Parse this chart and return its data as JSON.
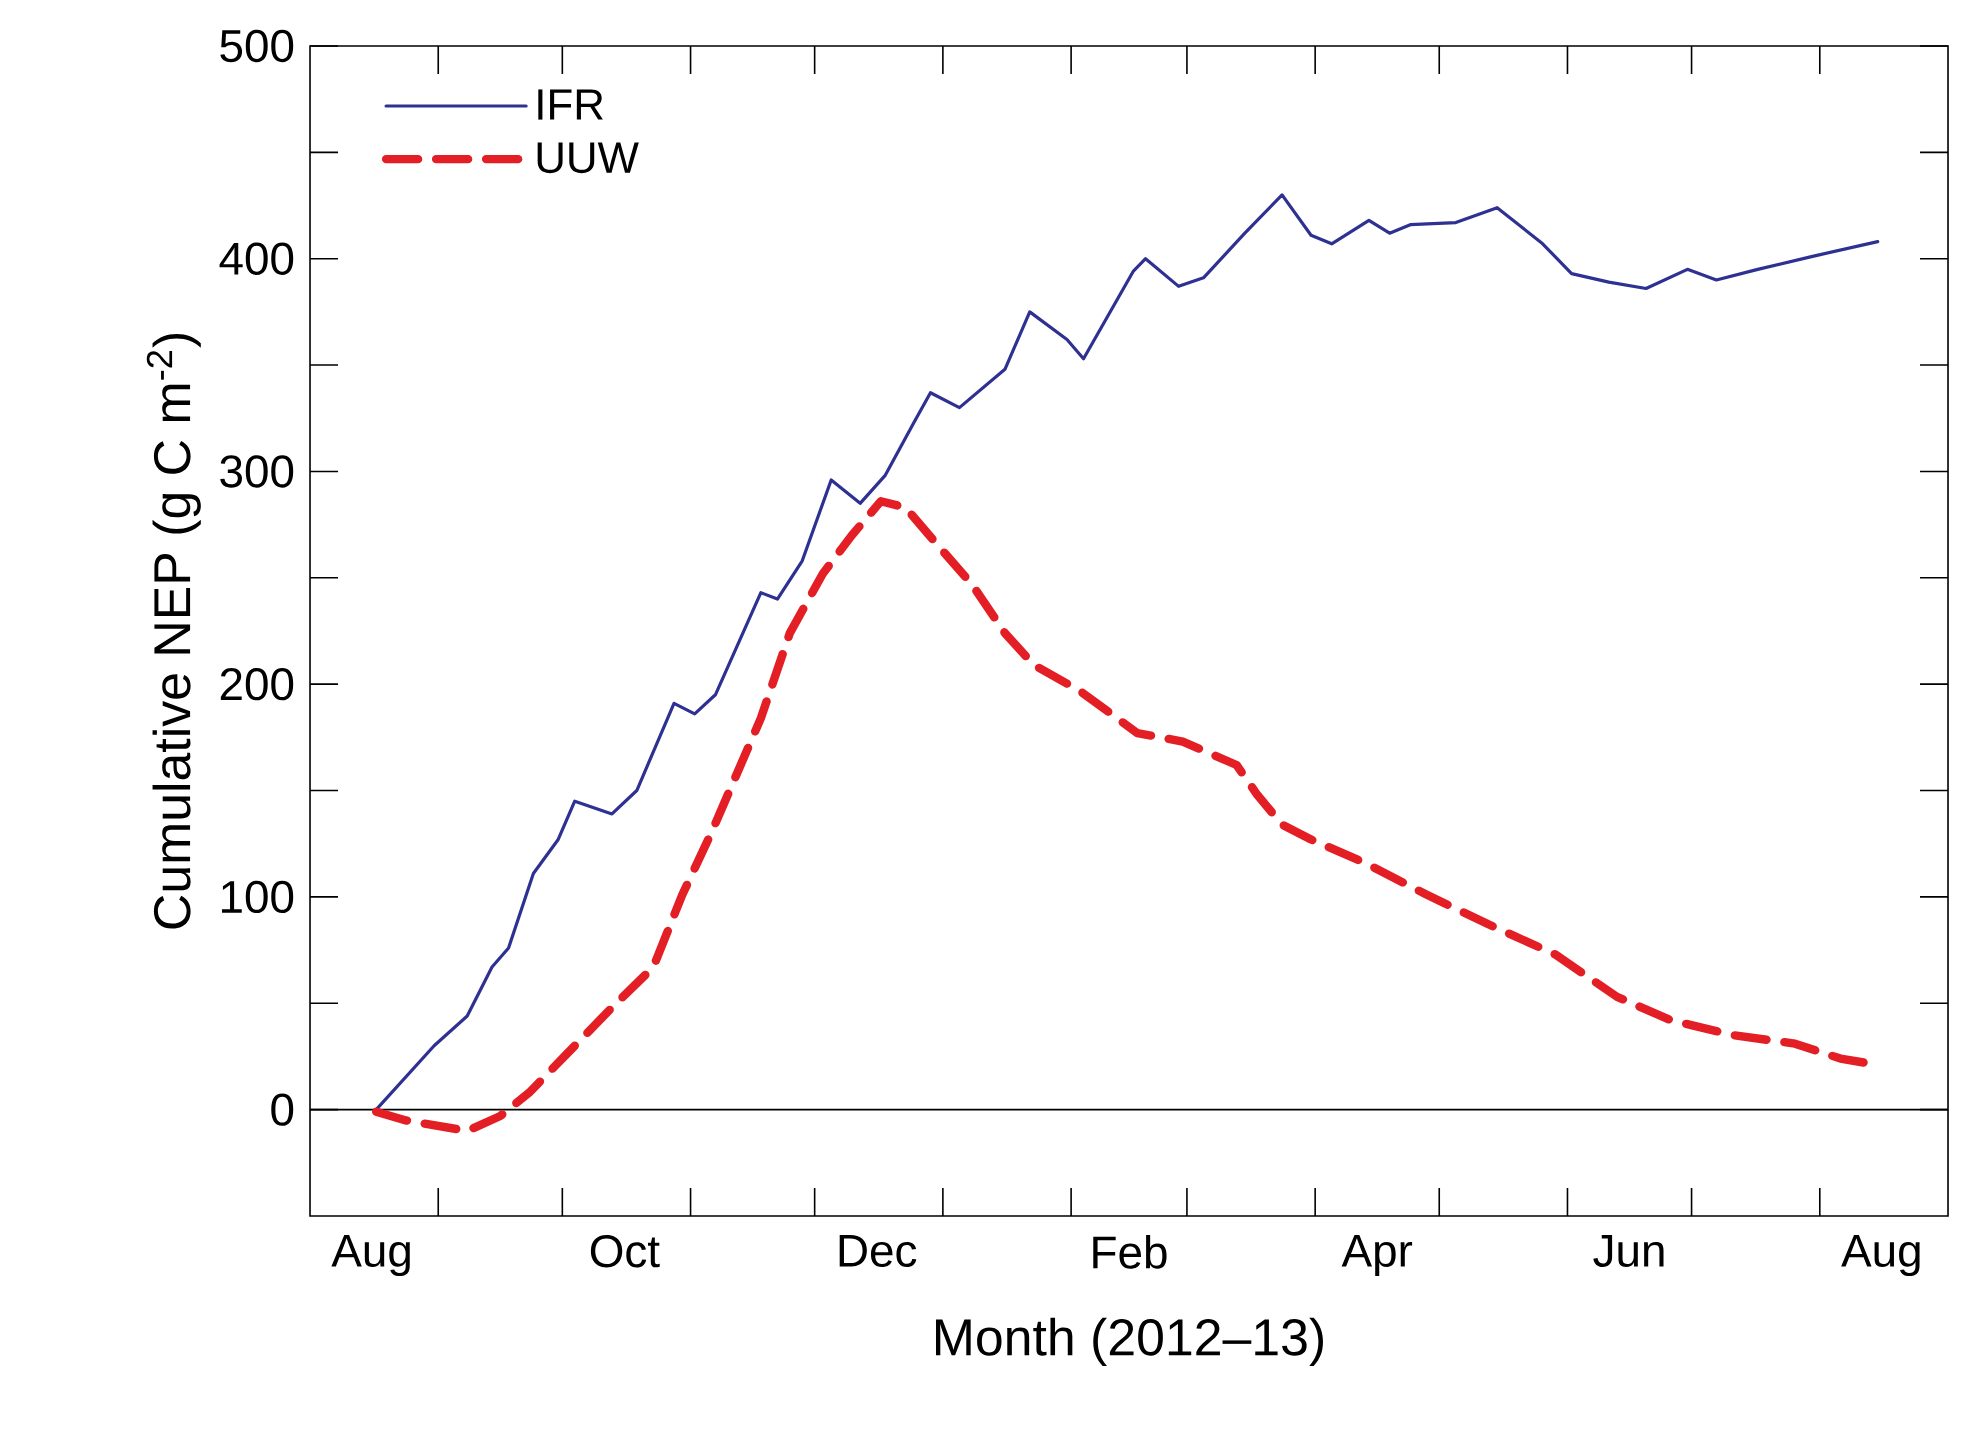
{
  "chart_data": {
    "type": "line",
    "xlabel": "Month (2012–13)",
    "ylabel": "Cumulative NEP (g C m$^{-2}$)",
    "xlim": [
      "2012-08-01",
      "2013-09-01"
    ],
    "xticks": [
      {
        "value": "2012-08-16",
        "label": "Aug"
      },
      {
        "value": "2012-10-16",
        "label": "Oct"
      },
      {
        "value": "2012-12-16",
        "label": "Dec"
      },
      {
        "value": "2013-02-15",
        "label": "Feb"
      },
      {
        "value": "2013-04-16",
        "label": "Apr"
      },
      {
        "value": "2013-06-16",
        "label": "Jun"
      },
      {
        "value": "2013-08-16",
        "label": "Aug"
      },
      {
        "value": "2012-09-01",
        "label": null
      },
      {
        "value": "2012-10-01",
        "label": null
      },
      {
        "value": "2012-11-01",
        "label": null
      },
      {
        "value": "2012-12-01",
        "label": null
      },
      {
        "value": "2013-01-01",
        "label": null
      },
      {
        "value": "2013-02-01",
        "label": null
      },
      {
        "value": "2013-03-01",
        "label": null
      },
      {
        "value": "2013-04-01",
        "label": null
      },
      {
        "value": "2013-05-01",
        "label": null
      },
      {
        "value": "2013-06-01",
        "label": null
      },
      {
        "value": "2013-07-01",
        "label": null
      },
      {
        "value": "2013-08-01",
        "label": null
      }
    ],
    "ylim": [
      -50,
      500
    ],
    "yticks": [
      0,
      100,
      200,
      300,
      400,
      500,
      {
        "value": 50,
        "label": null
      },
      {
        "value": 150,
        "label": null
      },
      {
        "value": 250,
        "label": null
      },
      {
        "value": 350,
        "label": null
      },
      {
        "value": 450,
        "label": null
      }
    ],
    "ref_lines": [
      {
        "axis": "y",
        "value": 0,
        "color": "#000000"
      }
    ],
    "legend": "top left",
    "grid": false,
    "series": [
      {
        "name": "IFR",
        "color": "#2e3192",
        "line_style": "solid",
        "x": [
          "2012-08-17",
          "2012-08-31",
          "2012-09-08",
          "2012-09-14",
          "2012-09-18",
          "2012-09-24",
          "2012-09-30",
          "2012-10-04",
          "2012-10-13",
          "2012-10-19",
          "2012-10-28",
          "2012-11-02",
          "2012-11-07",
          "2012-11-18",
          "2012-11-22",
          "2012-11-28",
          "2012-12-05",
          "2012-12-12",
          "2012-12-18",
          "2012-12-25",
          "2012-12-29",
          "2013-01-05",
          "2013-01-16",
          "2013-01-22",
          "2013-01-31",
          "2013-02-04",
          "2013-02-16",
          "2013-02-19",
          "2013-02-27",
          "2013-03-05",
          "2013-03-15",
          "2013-03-24",
          "2013-03-31",
          "2013-04-05",
          "2013-04-14",
          "2013-04-19",
          "2013-04-24",
          "2013-05-05",
          "2013-05-15",
          "2013-05-26",
          "2013-06-02",
          "2013-06-11",
          "2013-06-20",
          "2013-06-30",
          "2013-07-07",
          "2013-07-17",
          "2013-07-30",
          "2013-08-15"
        ],
        "values": [
          0,
          30,
          44,
          67,
          76,
          111,
          127,
          145,
          139,
          150,
          191,
          186,
          195,
          243,
          240,
          258,
          296,
          285,
          298,
          323,
          337,
          330,
          348,
          375,
          362,
          353,
          394,
          400,
          387,
          391,
          412,
          430,
          411,
          407,
          418,
          412,
          416,
          417,
          424,
          407,
          393,
          389,
          386,
          395,
          390,
          395,
          401,
          408
        ]
      },
      {
        "name": "UUW",
        "color": "#e31e24",
        "line_style": "dashed",
        "x": [
          "2012-08-17",
          "2012-08-24",
          "2012-09-08",
          "2012-09-16",
          "2012-09-23",
          "2012-10-02",
          "2012-10-13",
          "2012-10-23",
          "2012-10-30",
          "2012-11-06",
          "2012-11-18",
          "2012-11-25",
          "2012-12-03",
          "2012-12-10",
          "2012-12-17",
          "2012-12-23",
          "2012-12-30",
          "2013-01-08",
          "2013-01-16",
          "2013-01-23",
          "2013-02-03",
          "2013-02-17",
          "2013-02-28",
          "2013-03-13",
          "2013-03-18",
          "2013-03-24",
          "2013-03-31",
          "2013-04-13",
          "2013-04-28",
          "2013-05-13",
          "2013-05-29",
          "2013-06-13",
          "2013-06-26",
          "2013-07-11",
          "2013-07-26",
          "2013-08-06",
          "2013-08-15"
        ],
        "values": [
          -1,
          -5,
          -10,
          -3,
          8,
          26,
          48,
          67,
          101,
          130,
          184,
          224,
          252,
          270,
          286,
          283,
          267,
          247,
          224,
          209,
          197,
          177,
          173,
          162,
          148,
          134,
          127,
          116,
          101,
          87,
          73,
          53,
          42,
          35,
          31,
          24,
          21
        ]
      }
    ]
  }
}
